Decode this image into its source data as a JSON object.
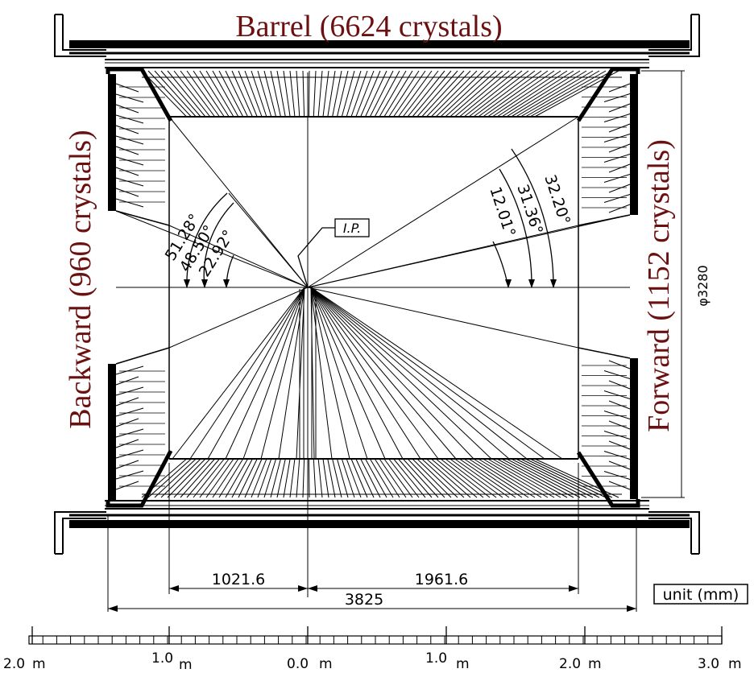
{
  "labels": {
    "barrel": "Barrel (6624 crystals)",
    "backward": "Backward (960 crystals)",
    "forward": "Forward (1152 crystals)",
    "ip": "I.P.",
    "unit": "unit (mm)",
    "diameter": "φ3280"
  },
  "colors": {
    "title_text": "#6b1010",
    "line": "#000000"
  },
  "angles": {
    "backward": [
      "51.28°",
      "48.50°",
      "22.92°"
    ],
    "forward": [
      "32.20°",
      "31.36°",
      "12.01°"
    ]
  },
  "dimensions": {
    "backward_length": "1021.6",
    "forward_length": "1961.6",
    "total_length": "3825"
  },
  "scale_bar": {
    "labels": [
      "2.0",
      "1.0",
      "0.0",
      "1.0",
      "2.0",
      "3.0"
    ],
    "unit": "m"
  }
}
